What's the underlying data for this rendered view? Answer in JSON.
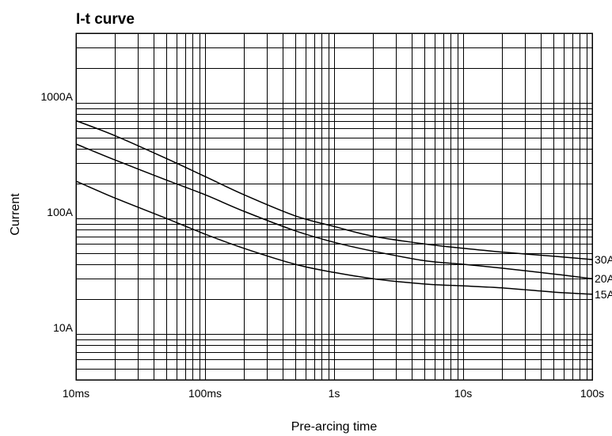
{
  "chart_data": {
    "type": "line",
    "title": "I-t curve",
    "xlabel": "Pre-arcing time",
    "ylabel": "Current",
    "xscale": "log",
    "yscale": "log",
    "xlim": [
      0.01,
      100
    ],
    "ylim": [
      4,
      4000
    ],
    "grid": true,
    "x_ticks": [
      {
        "value": 0.01,
        "label": "10ms"
      },
      {
        "value": 0.1,
        "label": "100ms"
      },
      {
        "value": 1,
        "label": "1s"
      },
      {
        "value": 10,
        "label": "10s"
      },
      {
        "value": 100,
        "label": "100s"
      }
    ],
    "y_ticks": [
      {
        "value": 10,
        "label": "10A"
      },
      {
        "value": 100,
        "label": "100A"
      },
      {
        "value": 1000,
        "label": "1000A"
      }
    ],
    "series": [
      {
        "name": "30A",
        "x": [
          0.01,
          0.02,
          0.05,
          0.1,
          0.2,
          0.5,
          1,
          2,
          5,
          10,
          20,
          50,
          100
        ],
        "y": [
          700,
          520,
          330,
          230,
          160,
          105,
          85,
          70,
          60,
          55,
          51,
          47,
          44
        ]
      },
      {
        "name": "20A",
        "x": [
          0.01,
          0.02,
          0.05,
          0.1,
          0.2,
          0.5,
          1,
          2,
          5,
          10,
          20,
          50,
          100
        ],
        "y": [
          440,
          320,
          215,
          160,
          115,
          78,
          62,
          52,
          43,
          40,
          37,
          33,
          30
        ]
      },
      {
        "name": "15A",
        "x": [
          0.01,
          0.02,
          0.05,
          0.1,
          0.2,
          0.5,
          1,
          2,
          5,
          10,
          20,
          50,
          100
        ],
        "y": [
          210,
          150,
          100,
          73,
          55,
          40,
          34,
          30,
          27,
          26,
          25,
          23,
          22
        ]
      }
    ]
  }
}
